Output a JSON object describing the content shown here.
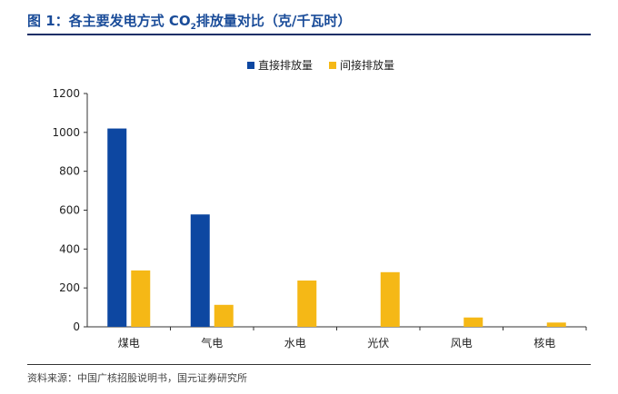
{
  "figure": {
    "title_prefix": "图 1：各主要发电方式 CO",
    "title_sub": "2",
    "title_suffix": "排放量对比（克/千瓦时）",
    "source": "资料来源：中国广核招股说明书，国元证券研究所"
  },
  "chart_data": {
    "type": "bar",
    "categories": [
      "煤电",
      "气电",
      "水电",
      "光伏",
      "风电",
      "核电"
    ],
    "series": [
      {
        "name": "直接排放量",
        "color": "#0d47a1",
        "values": [
          1020,
          578,
          0,
          0,
          0,
          0
        ]
      },
      {
        "name": "间接排放量",
        "color": "#f5b816",
        "values": [
          290,
          113,
          238,
          281,
          48,
          22
        ]
      }
    ],
    "ylim": [
      0,
      1200
    ],
    "yticks": [
      0,
      200,
      400,
      600,
      800,
      1000,
      1200
    ],
    "grid": false,
    "legend": "top-center",
    "xlabel": "",
    "ylabel": ""
  }
}
